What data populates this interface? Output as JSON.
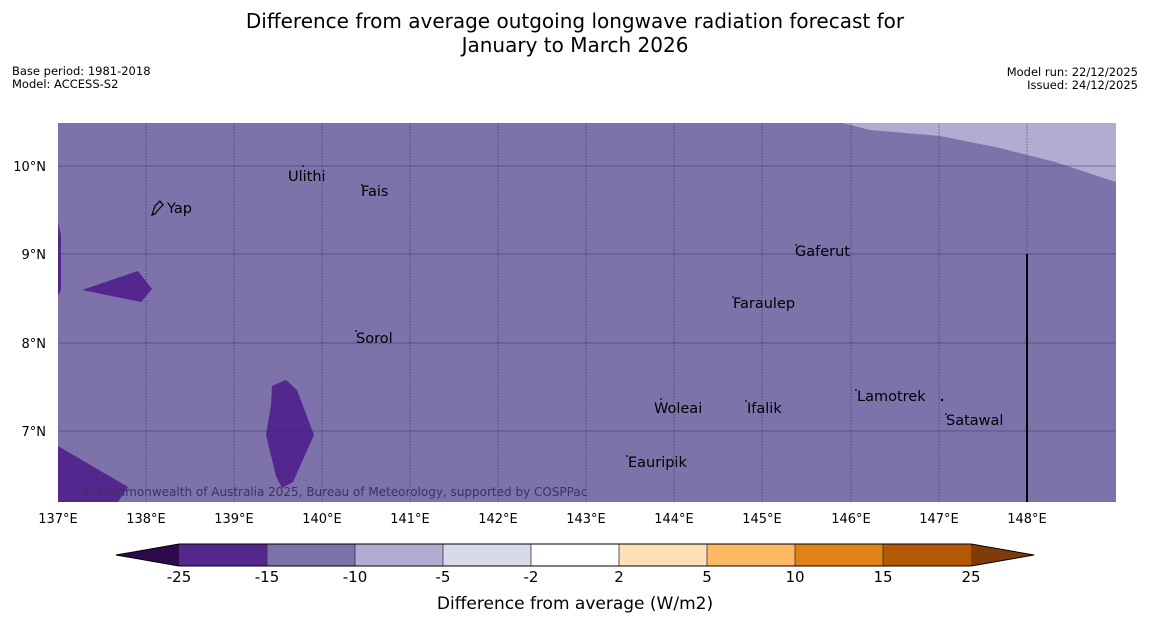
{
  "title_line1": "Difference from average outgoing longwave radiation forecast for",
  "title_line2": "January to March 2026",
  "base_period": "Base period: 1981-2018",
  "model": "Model: ACCESS-S2",
  "model_run": "Model run: 22/12/2025",
  "issued": "Issued: 24/12/2025",
  "copyright": "© Commonwealth of Australia 2025, Bureau of Meteorology, supported by COSPPac",
  "lon_labels": [
    "137°E",
    "138°E",
    "139°E",
    "140°E",
    "141°E",
    "142°E",
    "143°E",
    "144°E",
    "145°E",
    "146°E",
    "147°E",
    "148°E"
  ],
  "lat_labels": [
    "10°N",
    "9°N",
    "8°N",
    "7°N"
  ],
  "places": [
    "Ulithi",
    "Fais",
    "Yap",
    "Gaferut",
    "Faraulep",
    "Sorol",
    "Lamotrek",
    "Woleai",
    "Ifalik",
    "Satawal",
    "Eauripik"
  ],
  "colorbar": {
    "ticks": [
      "-25",
      "-15",
      "-10",
      "-5",
      "-2",
      "2",
      "5",
      "10",
      "15",
      "25"
    ],
    "colors": [
      "#2d0a4e",
      "#54278f",
      "#7e72ab",
      "#b2abd2",
      "#d8daeb",
      "#ffffff",
      "#fee0b6",
      "#fdb863",
      "#e08214",
      "#b35806",
      "#7f3b08"
    ],
    "title": "Difference from average (W/m2)"
  },
  "field_colors": {
    "base": "#7e72ab",
    "lighter": "#b2abd2",
    "darker": "#54278f"
  }
}
